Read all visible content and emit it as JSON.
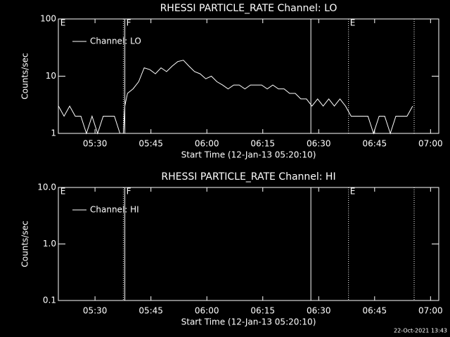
{
  "chart_data": [
    {
      "type": "line",
      "title": "RHESSI PARTICLE_RATE Channel: LO",
      "xlabel": "Start Time (12-Jan-13 05:20:10)",
      "ylabel": "Counts/sec",
      "log_y": true,
      "legend": "upper left",
      "x": [
        320.2,
        321.7,
        323.2,
        324.7,
        326.2,
        327.7,
        329.2,
        330.7,
        332.2,
        333.7,
        335.2,
        336.7,
        337.6,
        338.0,
        338.7,
        340.2,
        341.7,
        343.2,
        344.7,
        346.2,
        347.7,
        349.2,
        350.7,
        352.2,
        353.7,
        355.2,
        356.7,
        358.2,
        359.7,
        361.2,
        362.7,
        364.2,
        365.7,
        367.2,
        368.7,
        370.2,
        371.7,
        373.2,
        374.7,
        376.2,
        377.7,
        379.2,
        380.7,
        382.2,
        383.7,
        385.2,
        386.7,
        388.2,
        389.7,
        391.2,
        392.7,
        394.2,
        395.7,
        397.2,
        398.7,
        400.2,
        401.7,
        403.2,
        404.7,
        406.2,
        407.7,
        409.2,
        410.7,
        412.2,
        413.7,
        415.2
      ],
      "series": [
        {
          "name": "Channel: LO",
          "color": "#ffffff",
          "values": [
            3,
            2,
            3,
            2,
            2,
            1,
            2,
            1,
            2,
            2,
            2,
            1,
            1,
            3,
            5,
            6,
            8,
            14,
            13,
            11,
            14,
            12,
            15,
            18,
            19,
            15,
            12,
            11,
            9,
            10,
            8,
            7,
            6,
            7,
            7,
            6,
            7,
            7,
            7,
            6,
            7,
            6,
            6,
            5,
            5,
            4,
            4,
            3,
            4,
            3,
            4,
            3,
            4,
            3,
            2,
            2,
            2,
            2,
            1,
            2,
            2,
            1,
            2,
            2,
            2,
            3
          ]
        }
      ],
      "xlim": [
        320.17,
        422.2
      ],
      "xticks": [
        {
          "value": 330,
          "label": "05:30"
        },
        {
          "value": 345,
          "label": "05:45"
        },
        {
          "value": 360,
          "label": "06:00"
        },
        {
          "value": 375,
          "label": "06:15"
        },
        {
          "value": 390,
          "label": "06:30"
        },
        {
          "value": 405,
          "label": "06:45"
        },
        {
          "value": 420,
          "label": "07:00"
        }
      ],
      "ylim": [
        1,
        100
      ],
      "yticks": [
        1,
        10,
        100
      ],
      "markers": [
        {
          "x": 337.6,
          "line": "dotted"
        },
        {
          "x": 338.0,
          "line": "solid"
        },
        {
          "x": 387.9,
          "line": "solid"
        },
        {
          "x": 398.0,
          "line": "dotted"
        },
        {
          "x": 415.6,
          "line": "dotted"
        }
      ],
      "annotations": [
        {
          "text": "E",
          "x": 320.7
        },
        {
          "text": "F",
          "x": 338.4
        },
        {
          "text": "E",
          "x": 398.4
        }
      ]
    },
    {
      "type": "line",
      "title": "RHESSI PARTICLE_RATE Channel: HI",
      "xlabel": "Start Time (12-Jan-13 05:20:10)",
      "ylabel": "Counts/sec",
      "log_y": true,
      "legend": "upper left",
      "x": [],
      "series": [
        {
          "name": "Channel: HI",
          "color": "#ffffff",
          "values": []
        }
      ],
      "xlim": [
        320.17,
        422.2
      ],
      "xticks": [
        {
          "value": 330,
          "label": "05:30"
        },
        {
          "value": 345,
          "label": "05:45"
        },
        {
          "value": 360,
          "label": "06:00"
        },
        {
          "value": 375,
          "label": "06:15"
        },
        {
          "value": 390,
          "label": "06:30"
        },
        {
          "value": 405,
          "label": "06:45"
        },
        {
          "value": 420,
          "label": "07:00"
        }
      ],
      "ylim": [
        0.1,
        10
      ],
      "yticks": [
        0.1,
        {
          "value": 1,
          "label": "1.0"
        },
        {
          "value": 10,
          "label": "10.0"
        }
      ],
      "markers": [
        {
          "x": 337.6,
          "line": "dotted"
        },
        {
          "x": 338.0,
          "line": "solid"
        },
        {
          "x": 387.9,
          "line": "solid"
        },
        {
          "x": 398.0,
          "line": "dotted"
        },
        {
          "x": 415.6,
          "line": "dotted"
        }
      ],
      "annotations": [
        {
          "text": "E",
          "x": 320.7
        },
        {
          "text": "F",
          "x": 338.4
        },
        {
          "text": "E",
          "x": 398.4
        }
      ]
    }
  ],
  "footer": "22-Oct-2021 13:43"
}
